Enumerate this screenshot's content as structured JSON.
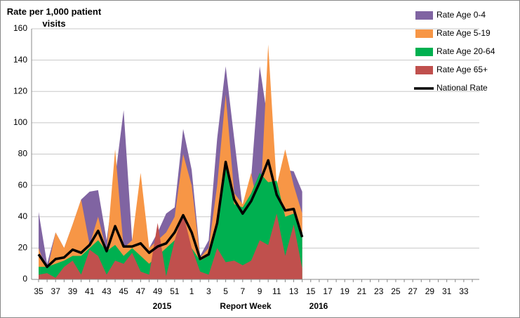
{
  "chart_data": {
    "type": "area",
    "y_label": "Rate per 1,000 patient visits",
    "x_label": "Report Week",
    "annotations": [
      "2015",
      "2016"
    ],
    "categories": [
      "35",
      null,
      "37",
      null,
      "39",
      null,
      "41",
      null,
      "43",
      null,
      "45",
      null,
      "47",
      null,
      "49",
      null,
      "51",
      null,
      "1",
      null,
      "3",
      null,
      "5",
      null,
      "7",
      null,
      "9",
      null,
      "11",
      null,
      "13",
      null,
      "15",
      null,
      "17",
      null,
      "19",
      null,
      "21",
      null,
      "23",
      null,
      "25",
      null,
      "27",
      null,
      "29",
      null,
      "31",
      null,
      "33",
      null
    ],
    "series": [
      {
        "name": "Rate Age 0-4",
        "color": "#8064a2",
        "values": [
          43,
          10,
          30,
          20,
          35,
          51,
          56,
          57,
          25,
          65,
          108,
          25,
          47,
          20,
          30,
          42,
          46,
          96,
          70,
          15,
          25,
          90,
          136,
          90,
          45,
          65,
          136,
          100,
          60,
          70,
          69,
          56,
          null,
          null,
          null,
          null,
          null,
          null,
          null,
          null,
          null,
          null,
          null,
          null,
          null,
          null,
          null,
          null,
          null,
          null,
          null,
          null
        ]
      },
      {
        "name": "Rate Age 5-19",
        "color": "#f79646",
        "values": [
          20,
          5,
          30,
          20,
          35,
          51,
          22,
          40,
          18,
          83,
          20,
          25,
          68,
          20,
          25,
          30,
          40,
          80,
          60,
          14,
          20,
          60,
          118,
          55,
          48,
          68,
          40,
          150,
          60,
          83,
          60,
          42,
          null,
          null,
          null,
          null,
          null,
          null,
          null,
          null,
          null,
          null,
          null,
          null,
          null,
          null,
          null,
          null,
          null,
          null,
          null,
          null
        ]
      },
      {
        "name": "Rate Age 20-64",
        "color": "#00b050",
        "values": [
          8,
          8,
          10,
          12,
          15,
          15,
          20,
          25,
          18,
          22,
          15,
          20,
          15,
          10,
          15,
          20,
          25,
          30,
          20,
          12,
          15,
          35,
          72,
          48,
          46,
          55,
          68,
          62,
          63,
          40,
          42,
          30,
          null,
          null,
          null,
          null,
          null,
          null,
          null,
          null,
          null,
          null,
          null,
          null,
          null,
          null,
          null,
          null,
          null,
          null,
          null,
          null
        ]
      },
      {
        "name": "Rate Age 65+",
        "color": "#c0504d",
        "values": [
          3,
          4,
          1,
          8,
          12,
          3,
          19,
          15,
          3,
          12,
          10,
          17,
          5,
          3,
          36,
          2,
          25,
          42,
          20,
          5,
          3,
          20,
          11,
          12,
          9,
          12,
          25,
          22,
          42,
          15,
          35,
          7,
          null,
          null,
          null,
          null,
          null,
          null,
          null,
          null,
          null,
          null,
          null,
          null,
          null,
          null,
          null,
          null,
          null,
          null,
          null,
          null
        ]
      },
      {
        "name": "National Rate",
        "color": "#000000",
        "line": true,
        "values": [
          16,
          8,
          13,
          14,
          19,
          17,
          22,
          31,
          18,
          34,
          21,
          21,
          23,
          17,
          21,
          23,
          30,
          41,
          30,
          13,
          16,
          36,
          75,
          51,
          42,
          50,
          62,
          76,
          54,
          44,
          45,
          27,
          null,
          null,
          null,
          null,
          null,
          null,
          null,
          null,
          null,
          null,
          null,
          null,
          null,
          null,
          null,
          null,
          null,
          null,
          null,
          null
        ]
      }
    ],
    "ylim": [
      0,
      160
    ],
    "yticks": [
      0,
      20,
      40,
      60,
      80,
      100,
      120,
      140,
      160
    ],
    "grid": true,
    "legend": "right"
  }
}
